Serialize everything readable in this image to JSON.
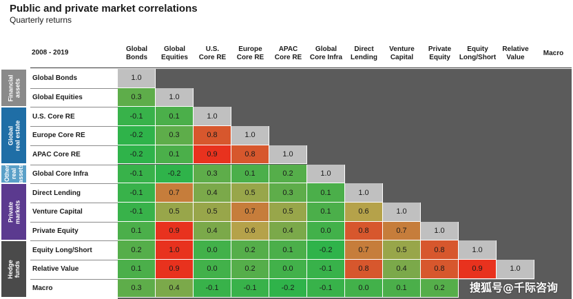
{
  "title": "Public and private market correlations",
  "subtitle": "Quarterly returns",
  "period": "2008 - 2019",
  "chart_data": {
    "type": "heatmap",
    "title": "Public and private market correlations",
    "subtitle": "Quarterly returns",
    "columns": [
      "Global Bonds",
      "Global Equities",
      "U.S. Core RE",
      "Europe Core RE",
      "APAC Core RE",
      "Global Core Infra",
      "Direct Lending",
      "Venture Capital",
      "Private Equity",
      "Equity Long/Short",
      "Relative Value",
      "Macro"
    ],
    "column_labels": [
      [
        "Global",
        "Bonds"
      ],
      [
        "Global",
        "Equities"
      ],
      [
        "U.S.",
        "Core RE"
      ],
      [
        "Europe",
        "Core RE"
      ],
      [
        "APAC",
        "Core RE"
      ],
      [
        "Global",
        "Core Infra"
      ],
      [
        "Direct",
        "Lending"
      ],
      [
        "Venture",
        "Capital"
      ],
      [
        "Private",
        "Equity"
      ],
      [
        "Equity",
        "Long/Short"
      ],
      [
        "Relative",
        "Value"
      ],
      [
        "Macro"
      ]
    ],
    "rows": [
      "Global Bonds",
      "Global Equities",
      "U.S. Core RE",
      "Europe Core RE",
      "APAC Core RE",
      "Global Core Infra",
      "Direct Lending",
      "Venture Capital",
      "Private Equity",
      "Equity Long/Short",
      "Relative Value",
      "Macro"
    ],
    "values": [
      [
        "1.0"
      ],
      [
        "0.3",
        "1.0"
      ],
      [
        "-0.1",
        "0.1",
        "1.0"
      ],
      [
        "-0.2",
        "0.3",
        "0.8",
        "1.0"
      ],
      [
        "-0.2",
        "0.1",
        "0.9",
        "0.8",
        "1.0"
      ],
      [
        "-0.1",
        "-0.2",
        "0.3",
        "0.1",
        "0.2",
        "1.0"
      ],
      [
        "-0.1",
        "0.7",
        "0.4",
        "0.5",
        "0.3",
        "0.1",
        "1.0"
      ],
      [
        "-0.1",
        "0.5",
        "0.5",
        "0.7",
        "0.5",
        "0.1",
        "0.6",
        "1.0"
      ],
      [
        "0.1",
        "0.9",
        "0.4",
        "0.6",
        "0.4",
        "0.0",
        "0.8",
        "0.7",
        "1.0"
      ],
      [
        "0.2",
        "1.0",
        "0.0",
        "0.2",
        "0.1",
        "-0.2",
        "0.7",
        "0.5",
        "0.8",
        "1.0"
      ],
      [
        "0.1",
        "0.9",
        "0.0",
        "0.2",
        "0.0",
        "-0.1",
        "0.8",
        "0.4",
        "0.8",
        "0.9",
        "1.0"
      ],
      [
        "0.3",
        "0.4",
        "-0.1",
        "-0.1",
        "-0.2",
        "-0.1",
        "0.0",
        "0.1",
        "0.2",
        "",
        "",
        ""
      ]
    ],
    "groups": [
      {
        "label": [
          "Financial",
          "assets"
        ],
        "rows": [
          0,
          1
        ],
        "color": "#8a8a8a"
      },
      {
        "label": [
          "Global",
          "real estate"
        ],
        "rows": [
          2,
          3,
          4
        ],
        "color": "#1f6ea6"
      },
      {
        "label": [
          "Other",
          "real",
          "assets"
        ],
        "rows": [
          5
        ],
        "color": "#5aa0c8"
      },
      {
        "label": [
          "Private",
          "markets"
        ],
        "rows": [
          6,
          7,
          8
        ],
        "color": "#5b3a8f"
      },
      {
        "label": [
          "Hedge",
          "funds"
        ],
        "rows": [
          9,
          10,
          11
        ],
        "color": "#4a4a4a"
      }
    ],
    "colors": {
      "diagonal": "#c0c0c0",
      "low": "#2fb34a",
      "mid": "#b5a24a",
      "high": "#e8321e"
    }
  },
  "watermark": "搜狐号@千际咨询"
}
